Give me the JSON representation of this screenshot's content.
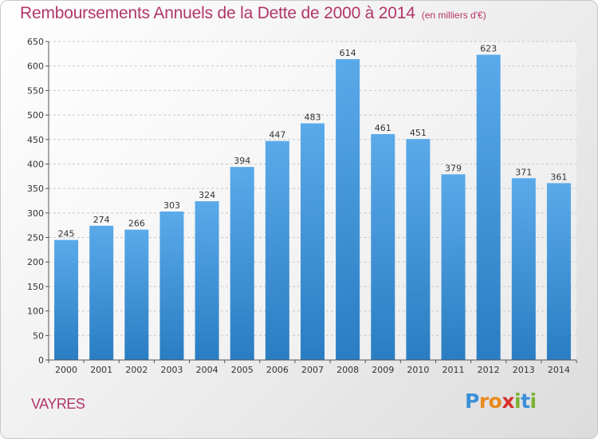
{
  "header": {
    "title": "Remboursements Annuels de la Dette de 2000 à 2014",
    "unit": "(en milliers d'€)"
  },
  "footer": {
    "commune": "VAYRES",
    "logo_letters": [
      "P",
      "r",
      "o",
      "x",
      "i",
      "t",
      "i"
    ],
    "logo_colors": [
      "#3b8fd9",
      "#e8891e",
      "#e8891e",
      "#d8312c",
      "#7ab232",
      "#3b8fd9",
      "#7ab232"
    ]
  },
  "chart_data": {
    "type": "bar",
    "title": "Remboursements Annuels de la Dette de 2000 à 2014",
    "xlabel": "",
    "ylabel": "",
    "categories": [
      "2000",
      "2001",
      "2002",
      "2003",
      "2004",
      "2005",
      "2006",
      "2007",
      "2008",
      "2009",
      "2010",
      "2011",
      "2012",
      "2013",
      "2014"
    ],
    "values": [
      245,
      274,
      266,
      303,
      324,
      394,
      447,
      483,
      614,
      461,
      451,
      379,
      623,
      371,
      361
    ],
    "ylim": [
      0,
      650
    ],
    "yticks": [
      0,
      50,
      100,
      150,
      200,
      250,
      300,
      350,
      400,
      450,
      500,
      550,
      600,
      650
    ],
    "grid": true,
    "bar_color_top": "#5aaaea",
    "bar_color_bottom": "#2a7dc2"
  }
}
